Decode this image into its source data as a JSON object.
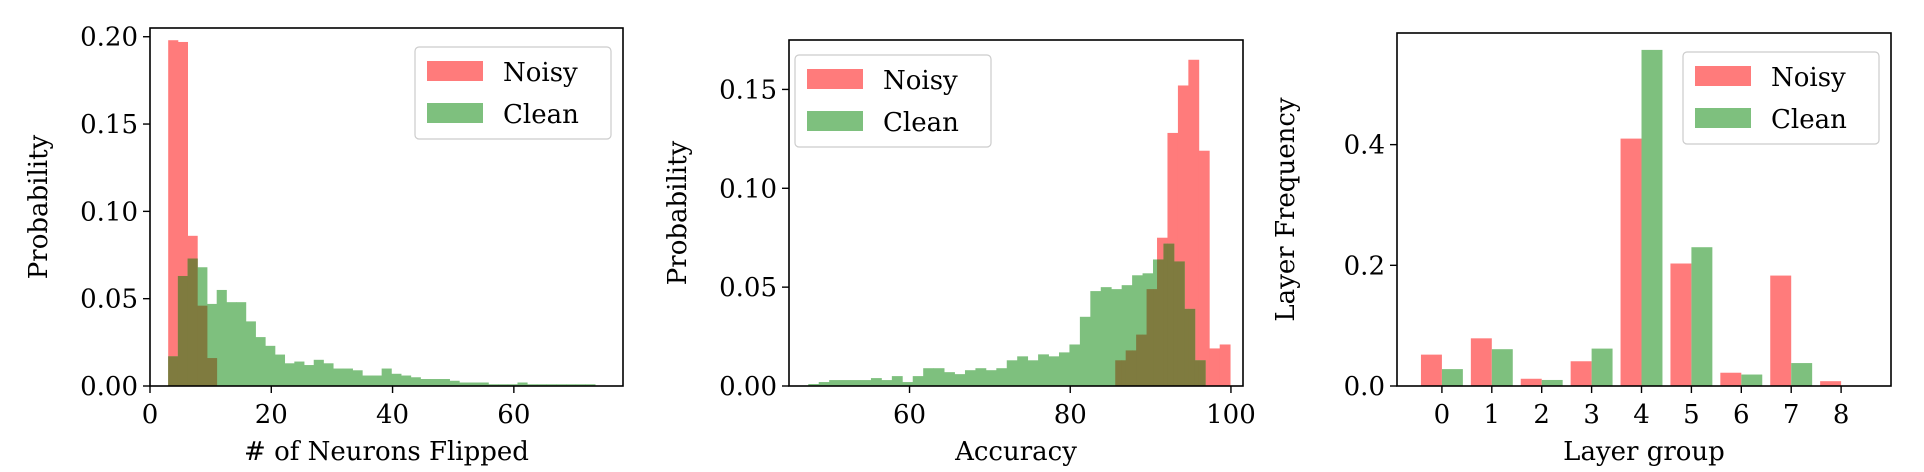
{
  "colors": {
    "noisy": "#ff7b7b",
    "clean": "#7ec07e",
    "overlap": "#7f7b3f",
    "axis": "#000000"
  },
  "chart_data": [
    {
      "id": "neurons",
      "type": "histogram",
      "xlabel": "# of Neurons Flipped",
      "ylabel": "Probability",
      "xlim": [
        0,
        78
      ],
      "ylim": [
        0,
        0.205
      ],
      "xticks": [
        0,
        20,
        40,
        60
      ],
      "yticks": [
        0.0,
        0.05,
        0.1,
        0.15,
        0.2
      ],
      "ytick_labels": [
        "0.00",
        "0.05",
        "0.10",
        "0.15",
        "0.20"
      ],
      "legend_position": "top-right",
      "series": [
        {
          "name": "Noisy",
          "bins": [
            [
              3.0,
              0.198
            ],
            [
              4.6,
              0.197
            ],
            [
              6.2,
              0.086
            ],
            [
              7.8,
              0.046
            ],
            [
              9.4,
              0.016
            ]
          ],
          "bin_width": 1.6
        },
        {
          "name": "Clean",
          "bin_width": 1.6,
          "bins": [
            [
              3.0,
              0.017
            ],
            [
              4.6,
              0.063
            ],
            [
              6.2,
              0.073
            ],
            [
              7.8,
              0.068
            ],
            [
              9.4,
              0.047
            ],
            [
              11.0,
              0.055
            ],
            [
              12.6,
              0.048
            ],
            [
              14.2,
              0.048
            ],
            [
              15.8,
              0.037
            ],
            [
              17.4,
              0.028
            ],
            [
              19.0,
              0.023
            ],
            [
              20.6,
              0.018
            ],
            [
              22.2,
              0.013
            ],
            [
              23.8,
              0.014
            ],
            [
              25.4,
              0.012
            ],
            [
              27.0,
              0.015
            ],
            [
              28.6,
              0.013
            ],
            [
              30.2,
              0.01
            ],
            [
              31.8,
              0.01
            ],
            [
              33.4,
              0.009
            ],
            [
              35.0,
              0.006
            ],
            [
              36.6,
              0.006
            ],
            [
              38.2,
              0.01
            ],
            [
              39.8,
              0.007
            ],
            [
              41.4,
              0.006
            ],
            [
              43.0,
              0.005
            ],
            [
              44.6,
              0.004
            ],
            [
              46.2,
              0.004
            ],
            [
              47.8,
              0.004
            ],
            [
              49.4,
              0.003
            ],
            [
              51.0,
              0.002
            ],
            [
              52.6,
              0.002
            ],
            [
              54.2,
              0.002
            ],
            [
              55.8,
              0.001
            ],
            [
              57.4,
              0.001
            ],
            [
              59.0,
              0.001
            ],
            [
              60.6,
              0.002
            ],
            [
              62.2,
              0.001
            ],
            [
              63.8,
              0.001
            ],
            [
              65.4,
              0.001
            ],
            [
              67.0,
              0.001
            ],
            [
              68.6,
              0.001
            ],
            [
              70.2,
              0.001
            ],
            [
              71.8,
              0.001
            ]
          ]
        }
      ]
    },
    {
      "id": "accuracy",
      "type": "histogram",
      "xlabel": "Accuracy",
      "ylabel": "Probability",
      "xlim": [
        45,
        101.5
      ],
      "ylim": [
        0,
        0.175
      ],
      "xticks": [
        60,
        80,
        100
      ],
      "yticks": [
        0.0,
        0.05,
        0.1,
        0.15
      ],
      "ytick_labels": [
        "0.00",
        "0.05",
        "0.10",
        "0.15"
      ],
      "legend_position": "top-left",
      "series": [
        {
          "name": "Noisy",
          "bin_width": 1.3,
          "bins": [
            [
              85.6,
              0.013
            ],
            [
              86.9,
              0.018
            ],
            [
              88.2,
              0.026
            ],
            [
              89.5,
              0.049
            ],
            [
              90.8,
              0.075
            ],
            [
              92.1,
              0.128
            ],
            [
              93.4,
              0.152
            ],
            [
              94.7,
              0.165
            ],
            [
              96.0,
              0.119
            ],
            [
              97.3,
              0.019
            ],
            [
              98.6,
              0.021
            ]
          ]
        },
        {
          "name": "Clean",
          "bin_width": 1.3,
          "bins": [
            [
              47.4,
              0.001
            ],
            [
              48.7,
              0.002
            ],
            [
              50.0,
              0.003
            ],
            [
              51.3,
              0.003
            ],
            [
              52.6,
              0.003
            ],
            [
              53.9,
              0.003
            ],
            [
              55.2,
              0.004
            ],
            [
              56.5,
              0.003
            ],
            [
              57.8,
              0.005
            ],
            [
              59.1,
              0.002
            ],
            [
              60.4,
              0.005
            ],
            [
              61.7,
              0.009
            ],
            [
              63.0,
              0.009
            ],
            [
              64.3,
              0.007
            ],
            [
              65.6,
              0.006
            ],
            [
              66.9,
              0.008
            ],
            [
              68.2,
              0.009
            ],
            [
              69.5,
              0.008
            ],
            [
              70.8,
              0.009
            ],
            [
              72.1,
              0.013
            ],
            [
              73.4,
              0.015
            ],
            [
              74.7,
              0.013
            ],
            [
              76.0,
              0.016
            ],
            [
              77.3,
              0.015
            ],
            [
              78.6,
              0.017
            ],
            [
              79.9,
              0.021
            ],
            [
              81.2,
              0.035
            ],
            [
              82.5,
              0.048
            ],
            [
              83.8,
              0.05
            ],
            [
              85.1,
              0.049
            ],
            [
              86.4,
              0.051
            ],
            [
              87.7,
              0.056
            ],
            [
              89.0,
              0.057
            ],
            [
              90.3,
              0.064
            ],
            [
              91.6,
              0.072
            ],
            [
              92.9,
              0.063
            ],
            [
              94.2,
              0.039
            ],
            [
              95.5,
              0.013
            ]
          ]
        }
      ]
    },
    {
      "id": "layers",
      "type": "bar",
      "xlabel": "Layer group",
      "ylabel": "Layer Frequency",
      "categories": [
        "0",
        "1",
        "2",
        "3",
        "4",
        "5",
        "6",
        "7",
        "8"
      ],
      "xlim": [
        -0.9,
        9.0
      ],
      "ylim": [
        0,
        0.585
      ],
      "yticks": [
        0.0,
        0.2,
        0.4
      ],
      "ytick_labels": [
        "0.0",
        "0.2",
        "0.4"
      ],
      "legend_position": "top-right",
      "series": [
        {
          "name": "Noisy",
          "values": [
            0.052,
            0.079,
            0.012,
            0.041,
            0.41,
            0.203,
            0.022,
            0.183,
            0.008
          ]
        },
        {
          "name": "Clean",
          "values": [
            0.028,
            0.061,
            0.01,
            0.062,
            0.557,
            0.23,
            0.019,
            0.038,
            0.0
          ]
        }
      ]
    }
  ]
}
